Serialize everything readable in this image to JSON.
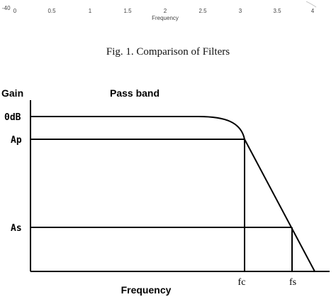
{
  "top_strip": {
    "y_tick": "-40",
    "x_ticks": [
      "0",
      "0.5",
      "1",
      "1.5",
      "2",
      "2.5",
      "3",
      "3.5",
      "4"
    ],
    "xlabel": "Frequency"
  },
  "caption": "Fig. 1.  Comparison of Filters",
  "diagram": {
    "ylabel": "Gain",
    "pass_band_label": "Pass band",
    "level_0db": "0dB",
    "level_ap": "Ap",
    "level_as": "As",
    "fc_label": "fc",
    "fs_label": "fs",
    "xlabel": "Frequency"
  }
}
